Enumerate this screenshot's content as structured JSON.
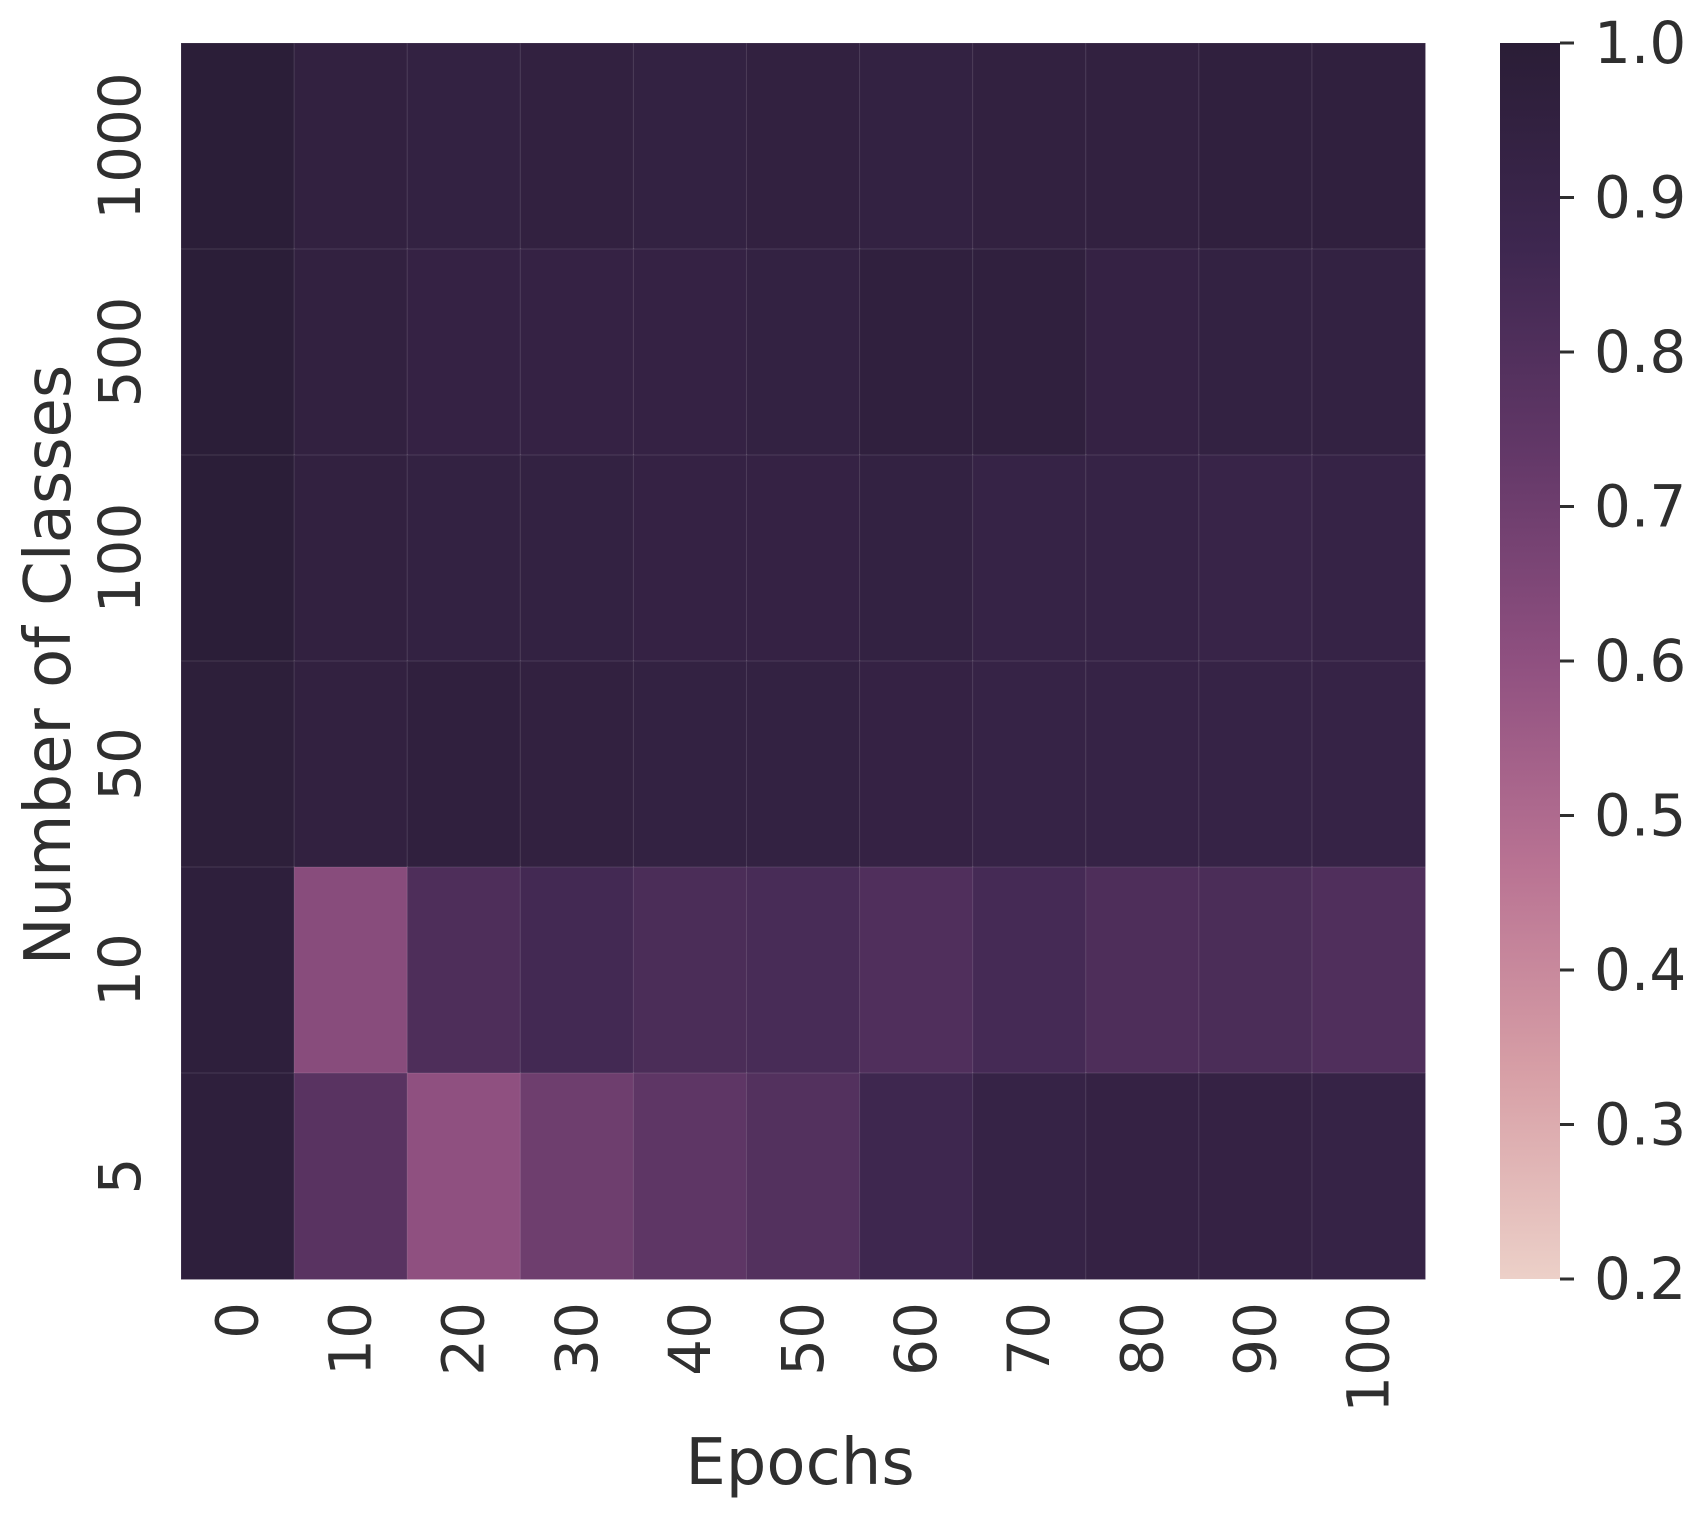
{
  "chart_data": {
    "type": "heatmap",
    "title": "",
    "xlabel": "Epochs",
    "ylabel": "Number of Classes",
    "x": [
      "0",
      "10",
      "20",
      "30",
      "40",
      "50",
      "60",
      "70",
      "80",
      "90",
      "100"
    ],
    "y": [
      "1000",
      "500",
      "100",
      "50",
      "10",
      "5"
    ],
    "values": [
      [
        0.99,
        0.95,
        0.94,
        0.95,
        0.94,
        0.95,
        0.94,
        0.95,
        0.95,
        0.96,
        0.96
      ],
      [
        0.99,
        0.95,
        0.93,
        0.93,
        0.93,
        0.94,
        0.96,
        0.96,
        0.93,
        0.94,
        0.94
      ],
      [
        0.99,
        0.95,
        0.94,
        0.94,
        0.93,
        0.93,
        0.94,
        0.92,
        0.92,
        0.91,
        0.92
      ],
      [
        0.98,
        0.95,
        0.96,
        0.95,
        0.94,
        0.94,
        0.93,
        0.92,
        0.92,
        0.92,
        0.92
      ],
      [
        0.97,
        0.62,
        0.81,
        0.85,
        0.82,
        0.83,
        0.8,
        0.84,
        0.81,
        0.82,
        0.8
      ],
      [
        0.97,
        0.77,
        0.6,
        0.7,
        0.75,
        0.79,
        0.87,
        0.92,
        0.93,
        0.93,
        0.92
      ]
    ],
    "colorbar": {
      "min": 0.2,
      "max": 1.0,
      "ticks": [
        "0.2",
        "0.3",
        "0.4",
        "0.5",
        "0.6",
        "0.7",
        "0.8",
        "0.9",
        "1.0"
      ]
    },
    "colormap": [
      "#ecd0c8",
      "#d79fa6",
      "#b97393",
      "#8f5080",
      "#633868",
      "#3e2750",
      "#2a1d36"
    ]
  }
}
